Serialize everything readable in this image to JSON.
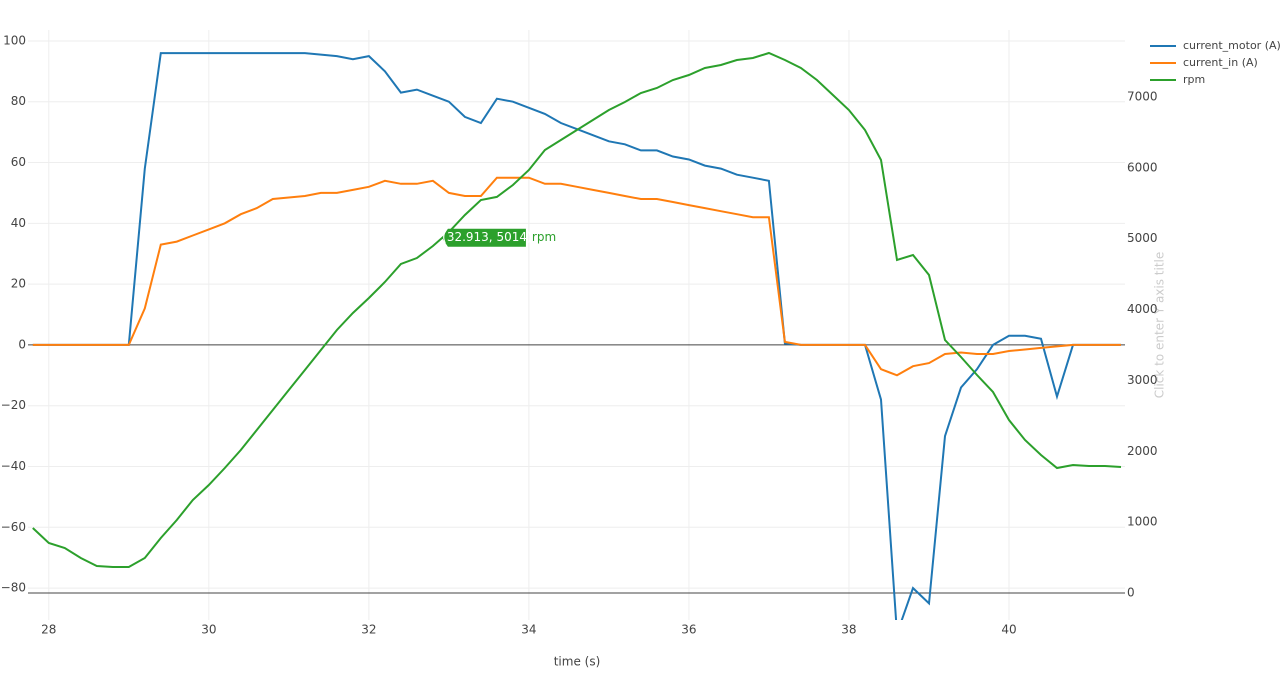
{
  "chart_data": {
    "type": "line",
    "x_label": "time (s)",
    "y2_label": "Click to enter Y axis title",
    "x": [
      27.8,
      28.0,
      28.2,
      28.4,
      28.6,
      28.8,
      29.0,
      29.2,
      29.4,
      29.6,
      29.8,
      30.0,
      30.2,
      30.4,
      30.6,
      30.8,
      31.0,
      31.2,
      31.4,
      31.6,
      31.8,
      32.0,
      32.2,
      32.4,
      32.6,
      32.8,
      33.0,
      33.2,
      33.4,
      33.6,
      33.8,
      34.0,
      34.2,
      34.4,
      34.6,
      34.8,
      35.0,
      35.2,
      35.4,
      35.6,
      35.8,
      36.0,
      36.2,
      36.4,
      36.6,
      36.8,
      37.0,
      37.2,
      37.4,
      37.6,
      37.8,
      38.0,
      38.2,
      38.4,
      38.6,
      38.8,
      39.0,
      39.2,
      39.4,
      39.6,
      39.8,
      40.0,
      40.2,
      40.4,
      40.6,
      40.8,
      41.0,
      41.2,
      41.4
    ],
    "series": [
      {
        "name": "current_motor (A)",
        "color": "#1f77b4",
        "values": [
          0,
          0,
          0,
          0,
          0,
          0,
          0,
          58,
          96,
          96,
          96,
          96,
          96,
          96,
          96,
          96,
          96,
          96,
          95.5,
          95,
          94,
          95,
          90,
          83,
          84,
          82,
          80,
          75,
          73,
          81,
          80,
          78,
          76,
          73,
          71,
          69,
          67,
          66,
          64,
          64,
          62,
          61,
          59,
          58,
          56,
          55,
          54,
          0.5,
          0,
          0,
          0,
          0,
          0,
          -18,
          -95,
          -80,
          -85,
          -30,
          -14,
          -8,
          0,
          3,
          3,
          2,
          -17,
          0,
          0,
          0,
          0
        ]
      },
      {
        "name": "current_in (A)",
        "color": "#ff7f0e",
        "values": [
          0,
          0,
          0,
          0,
          0,
          0,
          0,
          12,
          33,
          34,
          36,
          38,
          40,
          43,
          45,
          48,
          48.5,
          49,
          50,
          50,
          51,
          52,
          54,
          53,
          53,
          54,
          50,
          49,
          49,
          55,
          55,
          55,
          53,
          53,
          52,
          51,
          50,
          49,
          48,
          48,
          47,
          46,
          45,
          44,
          43,
          42,
          42,
          1,
          0,
          0,
          0,
          0,
          0,
          -8,
          -10,
          -7,
          -6,
          -3,
          -2.5,
          -3,
          -3,
          -2,
          -1.5,
          -1,
          -0.5,
          0,
          0,
          0,
          0
        ]
      },
      {
        "name": "rpm",
        "color": "#2ca02c",
        "axis": "y2",
        "values": [
          917,
          706,
          635,
          494,
          381,
          367,
          367,
          494,
          776,
          1030,
          1312,
          1524,
          1764,
          2018,
          2300,
          2583,
          2865,
          3147,
          3429,
          3711,
          3951,
          4163,
          4389,
          4643,
          4728,
          4897,
          5095,
          5335,
          5546,
          5590,
          5758,
          5970,
          6252,
          6393,
          6534,
          6675,
          6816,
          6929,
          7056,
          7127,
          7240,
          7310,
          7409,
          7451,
          7522,
          7550,
          7621,
          7522,
          7409,
          7240,
          7028,
          6816,
          6534,
          6111,
          4700,
          4770,
          4488,
          3570,
          3330,
          3077,
          2837,
          2441,
          2159,
          1947,
          1764,
          1806,
          1792,
          1792,
          1778
        ]
      }
    ],
    "xlim": [
      27.74,
      41.45
    ],
    "xticks": [
      28,
      30,
      32,
      34,
      36,
      38,
      40
    ],
    "ylim": [
      -90.5,
      103.6
    ],
    "yticks": [
      {
        "value": -80,
        "label": "−80"
      },
      {
        "value": -60,
        "label": "−60"
      },
      {
        "value": -40,
        "label": "−40"
      },
      {
        "value": -20,
        "label": "−20"
      },
      0,
      20,
      40,
      60,
      80,
      100
    ],
    "y2lim": [
      -381,
      7945
    ],
    "y2ticks": [
      0,
      1000,
      2000,
      3000,
      4000,
      5000,
      6000,
      7000
    ],
    "grid": true,
    "legend": "top-right",
    "hover": {
      "x": 32.913,
      "y": 5014,
      "label": "(32.913, 5014)",
      "name": "rpm",
      "series": 2
    }
  }
}
